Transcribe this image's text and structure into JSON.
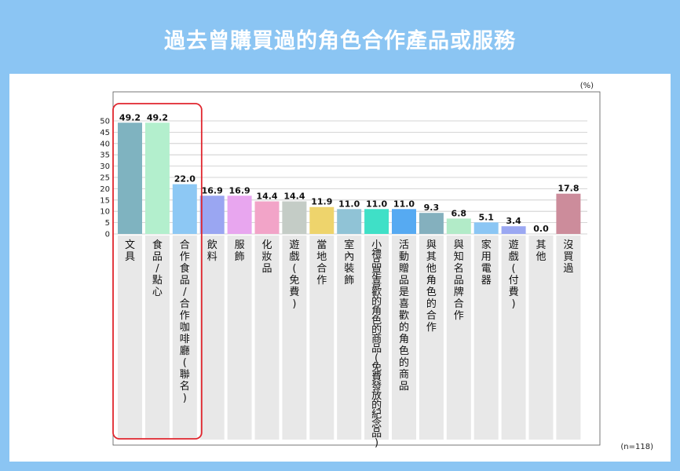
{
  "title": "過去曾購買過的角色合作產品或服務",
  "chart_data": {
    "type": "bar",
    "unit": "(%)",
    "note": "(n=118)",
    "ylim": [
      0,
      50
    ],
    "yticks": [
      "0",
      "5",
      "10",
      "15",
      "20",
      "25",
      "30",
      "35",
      "40",
      "45",
      "50"
    ],
    "grid": true,
    "categories": [
      "文具",
      "食品/點心",
      "合作食品/合作咖啡廳(聯名)",
      "飲料",
      "服飾",
      "化妝品",
      "遊戲(免費)",
      "當地合作",
      "室內裝飾",
      "小禮品是喜歡的角色的商品(免費發放的紀念品)",
      "活動贈品是喜歡的角色的商品",
      "與其他角色的合作",
      "與知名品牌合作",
      "家用電器",
      "遊戲(付費)",
      "其他",
      "沒買過"
    ],
    "values": [
      49.2,
      49.2,
      22.0,
      16.9,
      16.9,
      14.4,
      14.4,
      11.9,
      11.0,
      11.0,
      11.0,
      9.3,
      6.8,
      5.1,
      3.4,
      0.0,
      17.8
    ],
    "value_labels": [
      "49.2",
      "49.2",
      "22.0",
      "16.9",
      "16.9",
      "14.4",
      "14.4",
      "11.9",
      "11.0",
      "11.0",
      "11.0",
      "9.3",
      "6.8",
      "5.1",
      "3.4",
      "0.0",
      "17.8"
    ],
    "colors": [
      "#7fb3c0",
      "#b3efcd",
      "#8dc8f4",
      "#9aa6f2",
      "#e8a6ef",
      "#f2a4c8",
      "#c4ccc6",
      "#eed46c",
      "#90c3d6",
      "#3fe0c7",
      "#56aaf2",
      "#84b0be",
      "#b2ebc8",
      "#8bc6f4",
      "#9ba8f2",
      "#e6a6ee",
      "#cc8c9b"
    ],
    "highlight_group": [
      0,
      1,
      2
    ],
    "highlight_color": "#e0262e",
    "label_band_color": "#e8e8e8",
    "grid_color": "#c8c8c8"
  }
}
